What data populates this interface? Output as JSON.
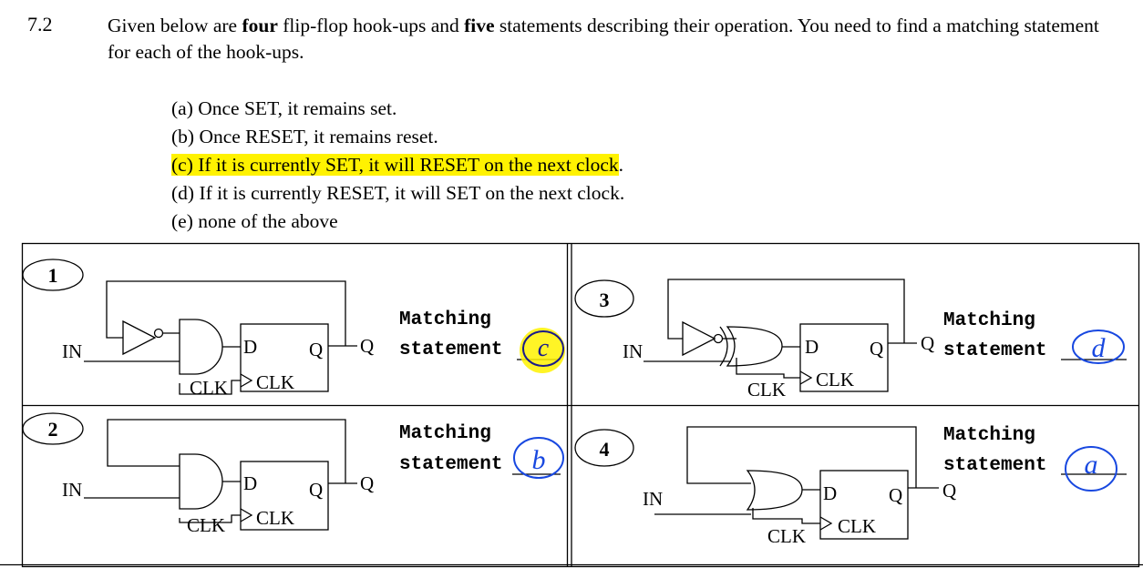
{
  "question": {
    "number": "7.2",
    "intro_1": "Given below are ",
    "intro_bold_1": "four",
    "intro_2": " flip-flop hook-ups and ",
    "intro_bold_2": "five",
    "intro_3": " statements describing their operation. You need to find a matching statement for each of the hook-ups."
  },
  "options": [
    {
      "text": "(a) Once SET, it remains set.",
      "highlighted": false
    },
    {
      "text": "(b) Once RESET, it remains reset.",
      "highlighted": false
    },
    {
      "text": "(c) If it is currently SET, it will RESET on the next clock",
      "suffix": ".",
      "highlighted": true
    },
    {
      "text": "(d) If it is currently RESET, it will SET on the next clock.",
      "highlighted": false
    },
    {
      "text": "(e) none of the above",
      "highlighted": false
    }
  ],
  "labels": {
    "in": "IN",
    "clk": "CLK",
    "d": "D",
    "q": "Q",
    "matching": "Matching",
    "statement": "statement"
  },
  "circuits": [
    {
      "id": "1",
      "answer": "c",
      "answer_color": "#1a1a8a",
      "highlight": "#fff200"
    },
    {
      "id": "2",
      "answer": "b",
      "answer_color": "#1848e0"
    },
    {
      "id": "3",
      "answer": "d",
      "answer_color": "#1848e0"
    },
    {
      "id": "4",
      "answer": "a",
      "answer_color": "#1848e0"
    }
  ]
}
